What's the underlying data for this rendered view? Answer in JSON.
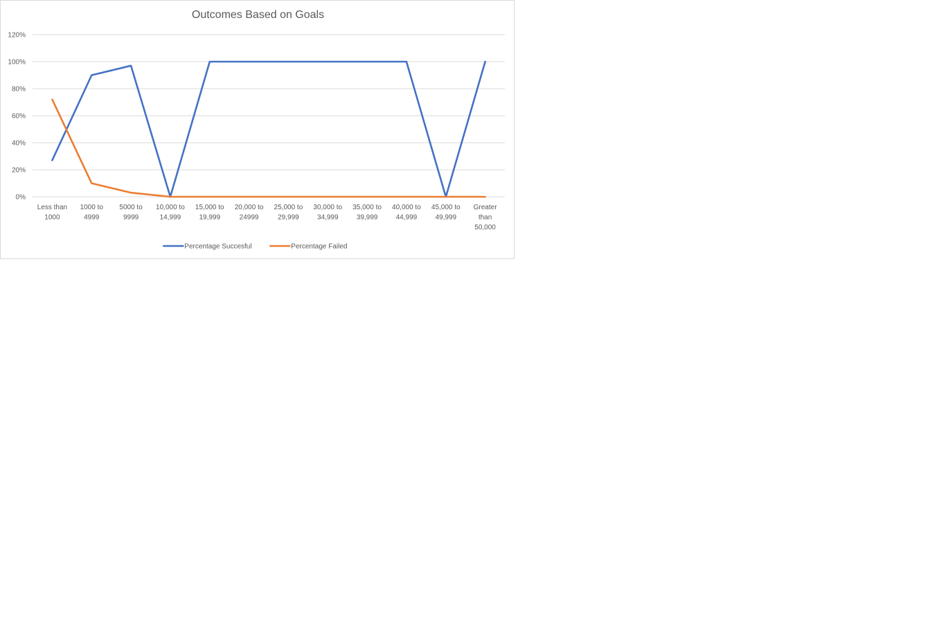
{
  "chart_data": {
    "type": "line",
    "title": "Outcomes Based on Goals",
    "xlabel": "",
    "ylabel": "",
    "ylim": [
      0,
      120
    ],
    "yticks": [
      "0%",
      "20%",
      "40%",
      "60%",
      "80%",
      "100%",
      "120%"
    ],
    "grid": true,
    "legend_position": "bottom",
    "categories": [
      [
        "Less than",
        "1000"
      ],
      [
        "1000 to",
        "4999"
      ],
      [
        "5000 to",
        "9999"
      ],
      [
        "10,000 to",
        "14,999"
      ],
      [
        "15,000 to",
        "19,999"
      ],
      [
        "20,000 to",
        "24999"
      ],
      [
        "25,000 to",
        "29,999"
      ],
      [
        "30,000 to",
        "34,999"
      ],
      [
        "35,000 to",
        "39,999"
      ],
      [
        "40,000 to",
        "44,999"
      ],
      [
        "45,000 to",
        "49,999"
      ],
      [
        "Greater",
        "than",
        "50,000"
      ]
    ],
    "series": [
      {
        "name": "Percentage Succesful",
        "color": "#4472c4",
        "values": [
          27,
          90,
          97,
          0,
          100,
          100,
          100,
          100,
          100,
          100,
          0,
          100
        ]
      },
      {
        "name": "Percentage Failed",
        "color": "#ed7d31",
        "values": [
          72,
          10,
          3,
          0,
          0,
          0,
          0,
          0,
          0,
          0,
          0,
          0
        ]
      }
    ]
  }
}
